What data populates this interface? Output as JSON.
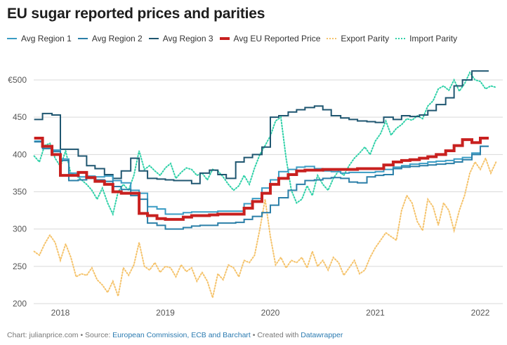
{
  "chart_data": {
    "type": "line",
    "title": "EU sugar reported prices and parities",
    "xlabel": "",
    "ylabel": "",
    "y_unit_prefix": "€",
    "ylim": [
      200,
      520
    ],
    "xlim": [
      2017.75,
      2022.2
    ],
    "y_ticks": [
      {
        "value": 200,
        "label": "200"
      },
      {
        "value": 250,
        "label": "250"
      },
      {
        "value": 300,
        "label": "300"
      },
      {
        "value": 350,
        "label": "350"
      },
      {
        "value": 400,
        "label": "400"
      },
      {
        "value": 450,
        "label": "450"
      },
      {
        "value": 500,
        "label": "€500"
      }
    ],
    "x_ticks": [
      {
        "value": 2018,
        "label": "2018"
      },
      {
        "value": 2019,
        "label": "2019"
      },
      {
        "value": 2020,
        "label": "2020"
      },
      {
        "value": 2021,
        "label": "2021"
      },
      {
        "value": 2022,
        "label": "2022"
      }
    ],
    "grid": true,
    "legend_position": "top-left",
    "series": [
      {
        "name": "Avg Region 1",
        "color": "#3a9cc4",
        "style": "step",
        "x": [
          2017.75,
          2017.83,
          2017.92,
          2018.0,
          2018.08,
          2018.17,
          2018.25,
          2018.33,
          2018.42,
          2018.5,
          2018.58,
          2018.67,
          2018.75,
          2018.83,
          2018.92,
          2019.0,
          2019.08,
          2019.17,
          2019.25,
          2019.33,
          2019.42,
          2019.5,
          2019.58,
          2019.67,
          2019.75,
          2019.83,
          2019.92,
          2020.0,
          2020.08,
          2020.17,
          2020.25,
          2020.33,
          2020.42,
          2020.5,
          2020.58,
          2020.67,
          2020.75,
          2020.83,
          2020.92,
          2021.0,
          2021.08,
          2021.17,
          2021.25,
          2021.33,
          2021.42,
          2021.5,
          2021.58,
          2021.67,
          2021.75,
          2021.83,
          2021.92,
          2022.0
        ],
        "values": [
          418,
          410,
          406,
          394,
          375,
          370,
          371,
          370,
          371,
          365,
          362,
          352,
          348,
          330,
          327,
          320,
          320,
          322,
          323,
          323,
          323,
          324,
          324,
          324,
          334,
          341,
          355,
          366,
          377,
          380,
          383,
          384,
          381,
          378,
          377,
          375,
          376,
          376,
          376,
          377,
          380,
          383,
          385,
          387,
          388,
          390,
          391,
          392,
          394,
          396,
          402,
          411
        ]
      },
      {
        "name": "Avg Region 2",
        "color": "#2b7fa8",
        "style": "step",
        "x": [
          2017.75,
          2017.83,
          2017.92,
          2018.0,
          2018.08,
          2018.17,
          2018.25,
          2018.33,
          2018.42,
          2018.5,
          2018.58,
          2018.67,
          2018.75,
          2018.83,
          2018.92,
          2019.0,
          2019.08,
          2019.17,
          2019.25,
          2019.33,
          2019.42,
          2019.5,
          2019.58,
          2019.67,
          2019.75,
          2019.83,
          2019.92,
          2020.0,
          2020.08,
          2020.17,
          2020.25,
          2020.33,
          2020.42,
          2020.5,
          2020.58,
          2020.67,
          2020.75,
          2020.83,
          2020.92,
          2021.0,
          2021.08,
          2021.17,
          2021.25,
          2021.33,
          2021.42,
          2021.5,
          2021.58,
          2021.67,
          2021.75,
          2021.83,
          2021.92,
          2022.0
        ],
        "values": [
          417,
          408,
          404,
          392,
          365,
          366,
          368,
          366,
          364,
          357,
          353,
          345,
          340,
          308,
          305,
          300,
          300,
          302,
          304,
          305,
          305,
          308,
          308,
          309,
          313,
          317,
          322,
          332,
          342,
          352,
          360,
          365,
          366,
          368,
          369,
          368,
          363,
          362,
          370,
          372,
          373,
          381,
          383,
          384,
          385,
          386,
          387,
          388,
          390,
          393,
          400,
          411
        ]
      },
      {
        "name": "Avg Region 3",
        "color": "#1f5670",
        "style": "step",
        "x": [
          2017.75,
          2017.83,
          2017.92,
          2018.0,
          2018.08,
          2018.17,
          2018.25,
          2018.33,
          2018.42,
          2018.5,
          2018.58,
          2018.67,
          2018.75,
          2018.83,
          2018.92,
          2019.0,
          2019.08,
          2019.17,
          2019.25,
          2019.33,
          2019.42,
          2019.5,
          2019.58,
          2019.67,
          2019.75,
          2019.83,
          2019.92,
          2020.0,
          2020.08,
          2020.17,
          2020.25,
          2020.33,
          2020.42,
          2020.5,
          2020.58,
          2020.67,
          2020.75,
          2020.83,
          2020.92,
          2021.0,
          2021.08,
          2021.17,
          2021.25,
          2021.33,
          2021.42,
          2021.5,
          2021.58,
          2021.67,
          2021.75,
          2021.83,
          2021.92,
          2022.0
        ],
        "values": [
          447,
          455,
          453,
          407,
          407,
          398,
          385,
          381,
          373,
          368,
          378,
          395,
          378,
          368,
          367,
          366,
          365,
          365,
          361,
          375,
          379,
          373,
          368,
          390,
          396,
          400,
          410,
          450,
          452,
          457,
          460,
          463,
          465,
          460,
          452,
          449,
          447,
          445,
          444,
          443,
          450,
          447,
          452,
          451,
          453,
          459,
          467,
          476,
          492,
          500,
          512,
          512
        ]
      },
      {
        "name": "Avg EU Reported Price",
        "color": "#c8201f",
        "style": "step",
        "x": [
          2017.75,
          2017.83,
          2017.92,
          2018.0,
          2018.08,
          2018.17,
          2018.25,
          2018.33,
          2018.42,
          2018.5,
          2018.58,
          2018.67,
          2018.75,
          2018.83,
          2018.92,
          2019.0,
          2019.08,
          2019.17,
          2019.25,
          2019.33,
          2019.42,
          2019.5,
          2019.58,
          2019.67,
          2019.75,
          2019.83,
          2019.92,
          2020.0,
          2020.08,
          2020.17,
          2020.25,
          2020.33,
          2020.42,
          2020.5,
          2020.58,
          2020.67,
          2020.75,
          2020.83,
          2020.92,
          2021.0,
          2021.08,
          2021.17,
          2021.25,
          2021.33,
          2021.42,
          2021.5,
          2021.58,
          2021.67,
          2021.75,
          2021.83,
          2021.92,
          2022.0
        ],
        "values": [
          422,
          411,
          400,
          372,
          372,
          376,
          369,
          364,
          360,
          350,
          348,
          348,
          321,
          318,
          314,
          313,
          313,
          316,
          318,
          318,
          319,
          320,
          320,
          320,
          328,
          337,
          348,
          360,
          368,
          373,
          378,
          379,
          379,
          380,
          380,
          380,
          380,
          381,
          381,
          381,
          386,
          390,
          392,
          393,
          395,
          397,
          400,
          405,
          412,
          420,
          416,
          422
        ]
      },
      {
        "name": "Export Parity",
        "color": "#f5c36b",
        "style": "dotted",
        "x": [
          2017.75,
          2017.8,
          2017.85,
          2017.9,
          2017.95,
          2018.0,
          2018.05,
          2018.1,
          2018.15,
          2018.2,
          2018.25,
          2018.3,
          2018.35,
          2018.4,
          2018.45,
          2018.5,
          2018.55,
          2018.6,
          2018.65,
          2018.7,
          2018.75,
          2018.8,
          2018.85,
          2018.9,
          2018.95,
          2019.0,
          2019.05,
          2019.1,
          2019.15,
          2019.2,
          2019.25,
          2019.3,
          2019.35,
          2019.4,
          2019.45,
          2019.5,
          2019.55,
          2019.6,
          2019.65,
          2019.7,
          2019.75,
          2019.8,
          2019.85,
          2019.9,
          2019.95,
          2020.0,
          2020.05,
          2020.1,
          2020.15,
          2020.2,
          2020.25,
          2020.3,
          2020.35,
          2020.4,
          2020.45,
          2020.5,
          2020.55,
          2020.6,
          2020.65,
          2020.7,
          2020.75,
          2020.8,
          2020.85,
          2020.9,
          2020.95,
          2021.0,
          2021.05,
          2021.1,
          2021.15,
          2021.2,
          2021.25,
          2021.3,
          2021.35,
          2021.4,
          2021.45,
          2021.5,
          2021.55,
          2021.6,
          2021.65,
          2021.7,
          2021.75,
          2021.8,
          2021.85,
          2021.9,
          2021.95,
          2022.0,
          2022.05,
          2022.1,
          2022.15
        ],
        "values": [
          270,
          265,
          280,
          292,
          282,
          258,
          280,
          262,
          236,
          240,
          238,
          248,
          232,
          225,
          215,
          230,
          210,
          248,
          238,
          252,
          282,
          250,
          245,
          255,
          242,
          250,
          248,
          236,
          252,
          243,
          248,
          230,
          242,
          230,
          208,
          240,
          232,
          252,
          248,
          236,
          258,
          255,
          265,
          300,
          340,
          290,
          252,
          262,
          248,
          258,
          255,
          262,
          248,
          270,
          250,
          258,
          245,
          262,
          255,
          238,
          248,
          258,
          240,
          245,
          262,
          275,
          285,
          295,
          290,
          285,
          325,
          345,
          335,
          310,
          298,
          340,
          330,
          305,
          335,
          325,
          298,
          325,
          345,
          375,
          390,
          380,
          395,
          375,
          390
        ]
      },
      {
        "name": "Import Parity",
        "color": "#2fd1a8",
        "style": "dotted",
        "x": [
          2017.75,
          2017.8,
          2017.85,
          2017.9,
          2017.95,
          2018.0,
          2018.05,
          2018.1,
          2018.15,
          2018.2,
          2018.25,
          2018.3,
          2018.35,
          2018.4,
          2018.45,
          2018.5,
          2018.55,
          2018.6,
          2018.65,
          2018.7,
          2018.75,
          2018.8,
          2018.85,
          2018.9,
          2018.95,
          2019.0,
          2019.05,
          2019.1,
          2019.15,
          2019.2,
          2019.25,
          2019.3,
          2019.35,
          2019.4,
          2019.45,
          2019.5,
          2019.55,
          2019.6,
          2019.65,
          2019.7,
          2019.75,
          2019.8,
          2019.85,
          2019.9,
          2019.95,
          2020.0,
          2020.05,
          2020.1,
          2020.15,
          2020.2,
          2020.25,
          2020.3,
          2020.35,
          2020.4,
          2020.45,
          2020.5,
          2020.55,
          2020.6,
          2020.65,
          2020.7,
          2020.75,
          2020.8,
          2020.85,
          2020.9,
          2020.95,
          2021.0,
          2021.05,
          2021.1,
          2021.15,
          2021.2,
          2021.25,
          2021.3,
          2021.35,
          2021.4,
          2021.45,
          2021.5,
          2021.55,
          2021.6,
          2021.65,
          2021.7,
          2021.75,
          2021.8,
          2021.85,
          2021.9,
          2021.95,
          2022.0,
          2022.05,
          2022.1,
          2022.15
        ],
        "values": [
          398,
          390,
          412,
          415,
          395,
          384,
          405,
          374,
          372,
          366,
          360,
          352,
          340,
          355,
          335,
          320,
          350,
          360,
          352,
          372,
          405,
          380,
          385,
          378,
          372,
          382,
          388,
          368,
          376,
          382,
          380,
          372,
          375,
          366,
          380,
          378,
          370,
          360,
          352,
          358,
          372,
          360,
          382,
          400,
          412,
          425,
          445,
          450,
          395,
          352,
          335,
          340,
          358,
          345,
          372,
          360,
          352,
          368,
          378,
          372,
          385,
          395,
          402,
          410,
          400,
          418,
          428,
          445,
          426,
          435,
          440,
          448,
          446,
          452,
          448,
          465,
          472,
          488,
          492,
          486,
          500,
          485,
          495,
          510,
          500,
          498,
          488,
          492,
          490
        ]
      }
    ]
  },
  "footer": {
    "prefix": "Chart: julianprice.com • Source: ",
    "source_link": "European Commission, ECB and Barchart",
    "middle": " • Created with ",
    "tool_link": "Datawrapper"
  }
}
